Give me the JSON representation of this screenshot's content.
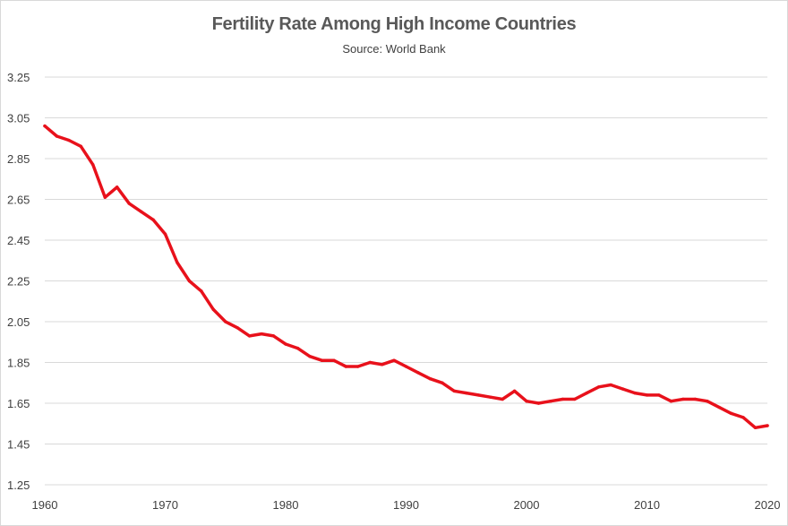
{
  "chart_data": {
    "type": "line",
    "title": "Fertility Rate Among High Income Countries",
    "subtitle": "Source: World Bank",
    "xlabel": "",
    "ylabel": "",
    "xlim": [
      1960,
      2020
    ],
    "ylim": [
      1.25,
      3.25
    ],
    "x_ticks": [
      "1960",
      "1970",
      "1980",
      "1990",
      "2000",
      "2010",
      "2020"
    ],
    "y_ticks": [
      "3.25",
      "3.05",
      "2.85",
      "2.65",
      "2.45",
      "2.25",
      "2.05",
      "1.85",
      "1.65",
      "1.45",
      "1.25"
    ],
    "grid": true,
    "legend": "none",
    "series_color": "#e8111b",
    "series": [
      {
        "x": [
          1960,
          1961,
          1962,
          1963,
          1964,
          1965,
          1966,
          1967,
          1968,
          1969,
          1970,
          1971,
          1972,
          1973,
          1974,
          1975,
          1976,
          1977,
          1978,
          1979,
          1980,
          1981,
          1982,
          1983,
          1984,
          1985,
          1986,
          1987,
          1988,
          1989,
          1990,
          1991,
          1992,
          1993,
          1994,
          1995,
          1996,
          1997,
          1998,
          1999,
          2000,
          2001,
          2002,
          2003,
          2004,
          2005,
          2006,
          2007,
          2008,
          2009,
          2010,
          2011,
          2012,
          2013,
          2014,
          2015,
          2016,
          2017,
          2018,
          2019,
          2020
        ],
        "values": [
          3.01,
          2.96,
          2.94,
          2.91,
          2.82,
          2.66,
          2.71,
          2.63,
          2.59,
          2.55,
          2.48,
          2.34,
          2.25,
          2.2,
          2.11,
          2.05,
          2.02,
          1.98,
          1.99,
          1.98,
          1.94,
          1.92,
          1.88,
          1.86,
          1.86,
          1.83,
          1.83,
          1.85,
          1.84,
          1.86,
          1.83,
          1.8,
          1.77,
          1.75,
          1.71,
          1.7,
          1.69,
          1.68,
          1.67,
          1.71,
          1.66,
          1.65,
          1.66,
          1.67,
          1.67,
          1.7,
          1.73,
          1.74,
          1.72,
          1.7,
          1.69,
          1.69,
          1.66,
          1.67,
          1.67,
          1.66,
          1.63,
          1.6,
          1.58,
          1.53,
          1.54
        ]
      }
    ]
  }
}
